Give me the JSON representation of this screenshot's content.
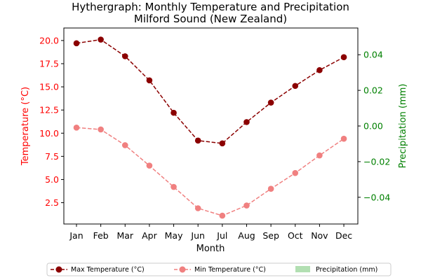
{
  "chart_data": {
    "type": "line",
    "title": "Hythergraph: Monthly Temperature and Precipitation",
    "subtitle": "Milford Sound (New Zealand)",
    "xlabel": "Month",
    "ylabel_left": "Temperature (°C)",
    "ylabel_right": "Precipitation (mm)",
    "categories": [
      "Jan",
      "Feb",
      "Mar",
      "Apr",
      "May",
      "Jun",
      "Jul",
      "Aug",
      "Sep",
      "Oct",
      "Nov",
      "Dec"
    ],
    "ylim_left": [
      0.2,
      21.35
    ],
    "yticks_left": [
      "2.5",
      "5.0",
      "7.5",
      "10.0",
      "12.5",
      "15.0",
      "17.5",
      "20.0"
    ],
    "ylim_right": [
      -0.055,
      0.055
    ],
    "yticks_right": [
      "−0.04",
      "−0.02",
      "0.00",
      "0.02",
      "0.04"
    ],
    "grid": false,
    "legend_position": "bottom",
    "series": [
      {
        "name": "Max Temperature (°C)",
        "axis": "left",
        "values": [
          19.7,
          20.1,
          18.3,
          15.7,
          12.2,
          9.2,
          8.9,
          11.2,
          13.3,
          15.1,
          16.8,
          18.2
        ],
        "color": "#8b0000",
        "style": "dashed",
        "marker": "circle"
      },
      {
        "name": "Min Temperature (°C)",
        "axis": "left",
        "values": [
          10.6,
          10.4,
          8.7,
          6.5,
          4.2,
          1.9,
          1.1,
          2.2,
          4.0,
          5.7,
          7.6,
          9.4
        ],
        "color": "#f08080",
        "style": "dashed",
        "marker": "circle"
      },
      {
        "name": "Precipitation (mm)",
        "axis": "right",
        "type": "bar",
        "values": [
          0,
          0,
          0,
          0,
          0,
          0,
          0,
          0,
          0,
          0,
          0,
          0
        ],
        "color": "#b2dfb2"
      }
    ],
    "colors": {
      "left_axis": "#ff0000",
      "right_axis": "#008000"
    }
  }
}
